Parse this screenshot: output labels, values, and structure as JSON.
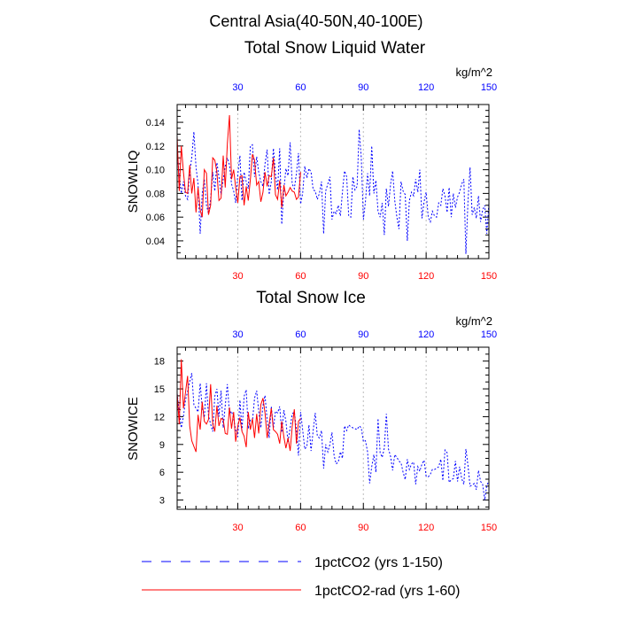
{
  "figure": {
    "title": "Central Asia(40-50N,40-100E)",
    "legend": [
      {
        "label": "1pctCO2 (yrs 1-150)",
        "color": "#0000ff",
        "style": "dashed"
      },
      {
        "label": "1pctCO2-rad (yrs 1-60)",
        "color": "#ff0000",
        "style": "solid"
      }
    ]
  },
  "chart_data": [
    {
      "type": "line",
      "title": "Total Snow Liquid Water",
      "units": "kg/m^2",
      "xlabel": "",
      "ylabel": "SNOWLIQ",
      "xlim": [
        1,
        150
      ],
      "ylim": [
        0.025,
        0.155
      ],
      "xticks": [
        30,
        60,
        90,
        120,
        150
      ],
      "xtick_labels": [
        "30",
        "60",
        "90",
        "120",
        "150"
      ],
      "yticks": [
        0.04,
        0.06,
        0.08,
        0.1,
        0.12,
        0.14
      ],
      "ytick_labels": [
        "0.04",
        "0.06",
        "0.08",
        "0.10",
        "0.12",
        "0.14"
      ],
      "top_tick_color": "#0000ff",
      "bottom_tick_color": "#ff0000",
      "grid": "vertical dotted at x ticks",
      "series": [
        {
          "name": "1pctCO2 (yrs 1-150)",
          "color": "#0000ff",
          "style": "dashed",
          "values": [
            0.115,
            0.095,
            0.08,
            0.09,
            0.078,
            0.075,
            0.098,
            0.11,
            0.132,
            0.102,
            0.088,
            0.046,
            0.08,
            0.092,
            0.07,
            0.063,
            0.075,
            0.098,
            0.082,
            0.106,
            0.094,
            0.079,
            0.092,
            0.103,
            0.11,
            0.104,
            0.088,
            0.082,
            0.072,
            0.096,
            0.112,
            0.074,
            0.098,
            0.09,
            0.084,
            0.12,
            0.121,
            0.094,
            0.111,
            0.098,
            0.09,
            0.086,
            0.105,
            0.117,
            0.079,
            0.09,
            0.118,
            0.096,
            0.083,
            0.118,
            0.054,
            0.083,
            0.101,
            0.095,
            0.123,
            0.088,
            0.084,
            0.097,
            0.114,
            0.071,
            0.08,
            0.103,
            0.093,
            0.101,
            0.098,
            0.083,
            0.082,
            0.075,
            0.08,
            0.09,
            0.046,
            0.082,
            0.088,
            0.094,
            0.058,
            0.065,
            0.063,
            0.07,
            0.061,
            0.081,
            0.099,
            0.094,
            0.061,
            0.06,
            0.094,
            0.083,
            0.086,
            0.134,
            0.11,
            0.058,
            0.073,
            0.097,
            0.078,
            0.12,
            0.08,
            0.091,
            0.065,
            0.06,
            0.072,
            0.045,
            0.084,
            0.069,
            0.088,
            0.099,
            0.074,
            0.06,
            0.05,
            0.09,
            0.082,
            0.079,
            0.04,
            0.074,
            0.081,
            0.078,
            0.092,
            0.081,
            0.1,
            0.059,
            0.073,
            0.081,
            0.06,
            0.056,
            0.065,
            0.061,
            0.06,
            0.072,
            0.07,
            0.084,
            0.078,
            0.064,
            0.085,
            0.06,
            0.08,
            0.068,
            0.077,
            0.081,
            0.088,
            0.092,
            0.029,
            0.074,
            0.102,
            0.062,
            0.068,
            0.059,
            0.078,
            0.056,
            0.066,
            0.07,
            0.046,
            0.072
          ]
        },
        {
          "name": "1pctCO2-rad (yrs 1-60)",
          "color": "#ff0000",
          "style": "solid",
          "values": [
            0.128,
            0.082,
            0.12,
            0.098,
            0.081,
            0.08,
            0.104,
            0.08,
            0.093,
            0.064,
            0.085,
            0.066,
            0.06,
            0.1,
            0.097,
            0.062,
            0.07,
            0.11,
            0.108,
            0.098,
            0.074,
            0.076,
            0.112,
            0.085,
            0.122,
            0.146,
            0.092,
            0.1,
            0.085,
            0.072,
            0.094,
            0.095,
            0.07,
            0.086,
            0.074,
            0.092,
            0.113,
            0.108,
            0.087,
            0.09,
            0.073,
            0.081,
            0.098,
            0.086,
            0.095,
            0.094,
            0.11,
            0.079,
            0.075,
            0.091,
            0.068,
            0.087,
            0.078,
            0.081,
            0.085,
            0.082,
            0.081,
            0.075,
            0.077,
            0.098
          ]
        }
      ]
    },
    {
      "type": "line",
      "title": "Total Snow Ice",
      "units": "kg/m^2",
      "xlabel": "",
      "ylabel": "SNOWICE",
      "xlim": [
        1,
        150
      ],
      "ylim": [
        2,
        19.5
      ],
      "xticks": [
        30,
        60,
        90,
        120,
        150
      ],
      "xtick_labels": [
        "30",
        "60",
        "90",
        "120",
        "150"
      ],
      "yticks": [
        3,
        6,
        9,
        12,
        15,
        18
      ],
      "ytick_labels": [
        "3",
        "6",
        "9",
        "12",
        "15",
        "18"
      ],
      "top_tick_color": "#0000ff",
      "bottom_tick_color": "#ff0000",
      "grid": "vertical dotted at x ticks",
      "series": [
        {
          "name": "1pctCO2 (yrs 1-150)",
          "color": "#0000ff",
          "style": "dashed",
          "values": [
            14.5,
            12.5,
            10.8,
            12.0,
            13.8,
            14.7,
            15.8,
            16.7,
            13.3,
            12.9,
            12.5,
            15.6,
            13.0,
            11.9,
            15.6,
            12.1,
            11.2,
            10.4,
            14.2,
            15.0,
            12.0,
            14.8,
            10.8,
            13.2,
            15.5,
            12.3,
            12.6,
            11.8,
            10.5,
            9.8,
            13.8,
            10.5,
            14.2,
            14.9,
            10.7,
            11.7,
            11.5,
            14.0,
            14.8,
            12.6,
            10.8,
            13.2,
            14.3,
            11.7,
            9.7,
            13.1,
            10.8,
            12.6,
            12.4,
            13.1,
            10.3,
            12.7,
            11.5,
            9.3,
            10.8,
            12.3,
            12.5,
            10.6,
            7.8,
            12.5,
            10.6,
            8.5,
            8.8,
            11.1,
            8.3,
            10.5,
            12.4,
            9.9,
            9.7,
            10.5,
            6.4,
            9.0,
            8.2,
            9.0,
            10.3,
            7.8,
            6.9,
            7.1,
            8.2,
            7.5,
            11.0,
            10.5,
            11.1,
            10.9,
            10.8,
            10.7,
            10.6,
            11.0,
            10.8,
            9.3,
            9.4,
            8.2,
            4.8,
            6.6,
            7.9,
            6.0,
            11.8,
            8.1,
            7.6,
            8.6,
            12.3,
            8.5,
            7.7,
            6.2,
            7.9,
            7.6,
            7.2,
            7.0,
            6.0,
            5.2,
            7.4,
            6.3,
            6.9,
            7.1,
            4.7,
            6.6,
            6.1,
            6.9,
            7.3,
            5.6,
            5.5,
            5.8,
            6.3,
            6.3,
            6.4,
            6.6,
            7.4,
            5.1,
            8.4,
            8.1,
            4.9,
            5.2,
            5.3,
            7.2,
            5.0,
            6.6,
            5.3,
            4.7,
            8.5,
            6.7,
            4.5,
            4.6,
            4.8,
            4.1,
            6.2,
            5.0,
            4.7,
            3.0,
            4.6,
            5.0
          ]
        },
        {
          "name": "1pctCO2-rad (yrs 1-60)",
          "color": "#ff0000",
          "style": "solid",
          "values": [
            14.5,
            11.2,
            18.2,
            12.9,
            14.6,
            16.4,
            11.0,
            9.4,
            8.8,
            8.2,
            12.2,
            10.6,
            13.6,
            11.5,
            11.2,
            11.7,
            15.5,
            11.2,
            10.4,
            13.2,
            11.0,
            11.8,
            11.7,
            10.2,
            10.1,
            13.0,
            10.7,
            12.5,
            9.3,
            11.0,
            11.9,
            10.4,
            9.9,
            8.7,
            12.5,
            10.6,
            11.8,
            9.7,
            12.3,
            10.2,
            13.3,
            14.0,
            12.4,
            9.7,
            11.2,
            12.9,
            10.6,
            10.4,
            10.1,
            9.1,
            11.5,
            9.8,
            8.6,
            9.7,
            8.3,
            10.9,
            12.8,
            9.1,
            11.5,
            11.8
          ]
        }
      ]
    }
  ]
}
